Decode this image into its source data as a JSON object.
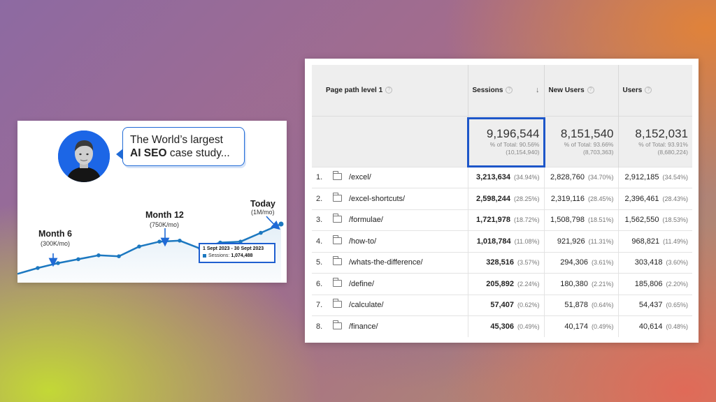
{
  "promo_card": {
    "bubble_line1": "The World’s largest",
    "bubble_line2_bold": "AI SEO",
    "bubble_line2_rest": " case study...",
    "annotations": [
      {
        "title": "Month 6",
        "sub": "(300K/mo)"
      },
      {
        "title": "Month 12",
        "sub": "(750K/mo)"
      },
      {
        "title": "Today",
        "sub": "(1M/mo)"
      }
    ],
    "tooltip": {
      "date": "1 Sept 2023 - 30 Sept 2023",
      "label": "Sessions:",
      "value": "1,074,488"
    },
    "line_color": "#1c78c0",
    "arrow_color": "#1f6ad6"
  },
  "chart_data": {
    "type": "line",
    "title": "",
    "xlabel": "",
    "ylabel": "",
    "series": [
      {
        "name": "Sessions",
        "values": [
          0.09,
          0.15,
          0.2,
          0.24,
          0.28,
          0.27,
          0.37,
          0.42,
          0.43,
          0.35,
          0.41,
          0.42,
          0.51,
          0.6
        ]
      }
    ],
    "ylim": [
      0,
      1
    ],
    "grid": false,
    "legend": "none",
    "unit_note": "values estimated, relative scale"
  },
  "analytics_table": {
    "columns": [
      {
        "label": "Page path level 1",
        "help": "?"
      },
      {
        "label": "Sessions",
        "help": "?",
        "sort": "↓"
      },
      {
        "label": "New Users",
        "help": "?"
      },
      {
        "label": "Users",
        "help": "?"
      }
    ],
    "totals": [
      {
        "value": "9,196,544",
        "line1": "% of Total: 90.56%",
        "line2": "(10,154,940)"
      },
      {
        "value": "8,151,540",
        "line1": "% of Total: 93.66%",
        "line2": "(8,703,363)"
      },
      {
        "value": "8,152,031",
        "line1": "% of Total: 93.91%",
        "line2": "(8,680,224)"
      }
    ],
    "rows": [
      {
        "index": "1.",
        "path": "/excel/",
        "sessions": "3,213,634",
        "sessions_pct": "(34.94%)",
        "new_users": "2,828,760",
        "new_users_pct": "(34.70%)",
        "users": "2,912,185",
        "users_pct": "(34.54%)"
      },
      {
        "index": "2.",
        "path": "/excel-shortcuts/",
        "sessions": "2,598,244",
        "sessions_pct": "(28.25%)",
        "new_users": "2,319,116",
        "new_users_pct": "(28.45%)",
        "users": "2,396,461",
        "users_pct": "(28.43%)"
      },
      {
        "index": "3.",
        "path": "/formulae/",
        "sessions": "1,721,978",
        "sessions_pct": "(18.72%)",
        "new_users": "1,508,798",
        "new_users_pct": "(18.51%)",
        "users": "1,562,550",
        "users_pct": "(18.53%)"
      },
      {
        "index": "4.",
        "path": "/how-to/",
        "sessions": "1,018,784",
        "sessions_pct": "(11.08%)",
        "new_users": "921,926",
        "new_users_pct": "(11.31%)",
        "users": "968,821",
        "users_pct": "(11.49%)"
      },
      {
        "index": "5.",
        "path": "/whats-the-difference/",
        "sessions": "328,516",
        "sessions_pct": "(3.57%)",
        "new_users": "294,306",
        "new_users_pct": "(3.61%)",
        "users": "303,418",
        "users_pct": "(3.60%)"
      },
      {
        "index": "6.",
        "path": "/define/",
        "sessions": "205,892",
        "sessions_pct": "(2.24%)",
        "new_users": "180,380",
        "new_users_pct": "(2.21%)",
        "users": "185,806",
        "users_pct": "(2.20%)"
      },
      {
        "index": "7.",
        "path": "/calculate/",
        "sessions": "57,407",
        "sessions_pct": "(0.62%)",
        "new_users": "51,878",
        "new_users_pct": "(0.64%)",
        "users": "54,437",
        "users_pct": "(0.65%)"
      },
      {
        "index": "8.",
        "path": "/finance/",
        "sessions": "45,306",
        "sessions_pct": "(0.49%)",
        "new_users": "40,174",
        "new_users_pct": "(0.49%)",
        "users": "40,614",
        "users_pct": "(0.48%)"
      }
    ]
  }
}
